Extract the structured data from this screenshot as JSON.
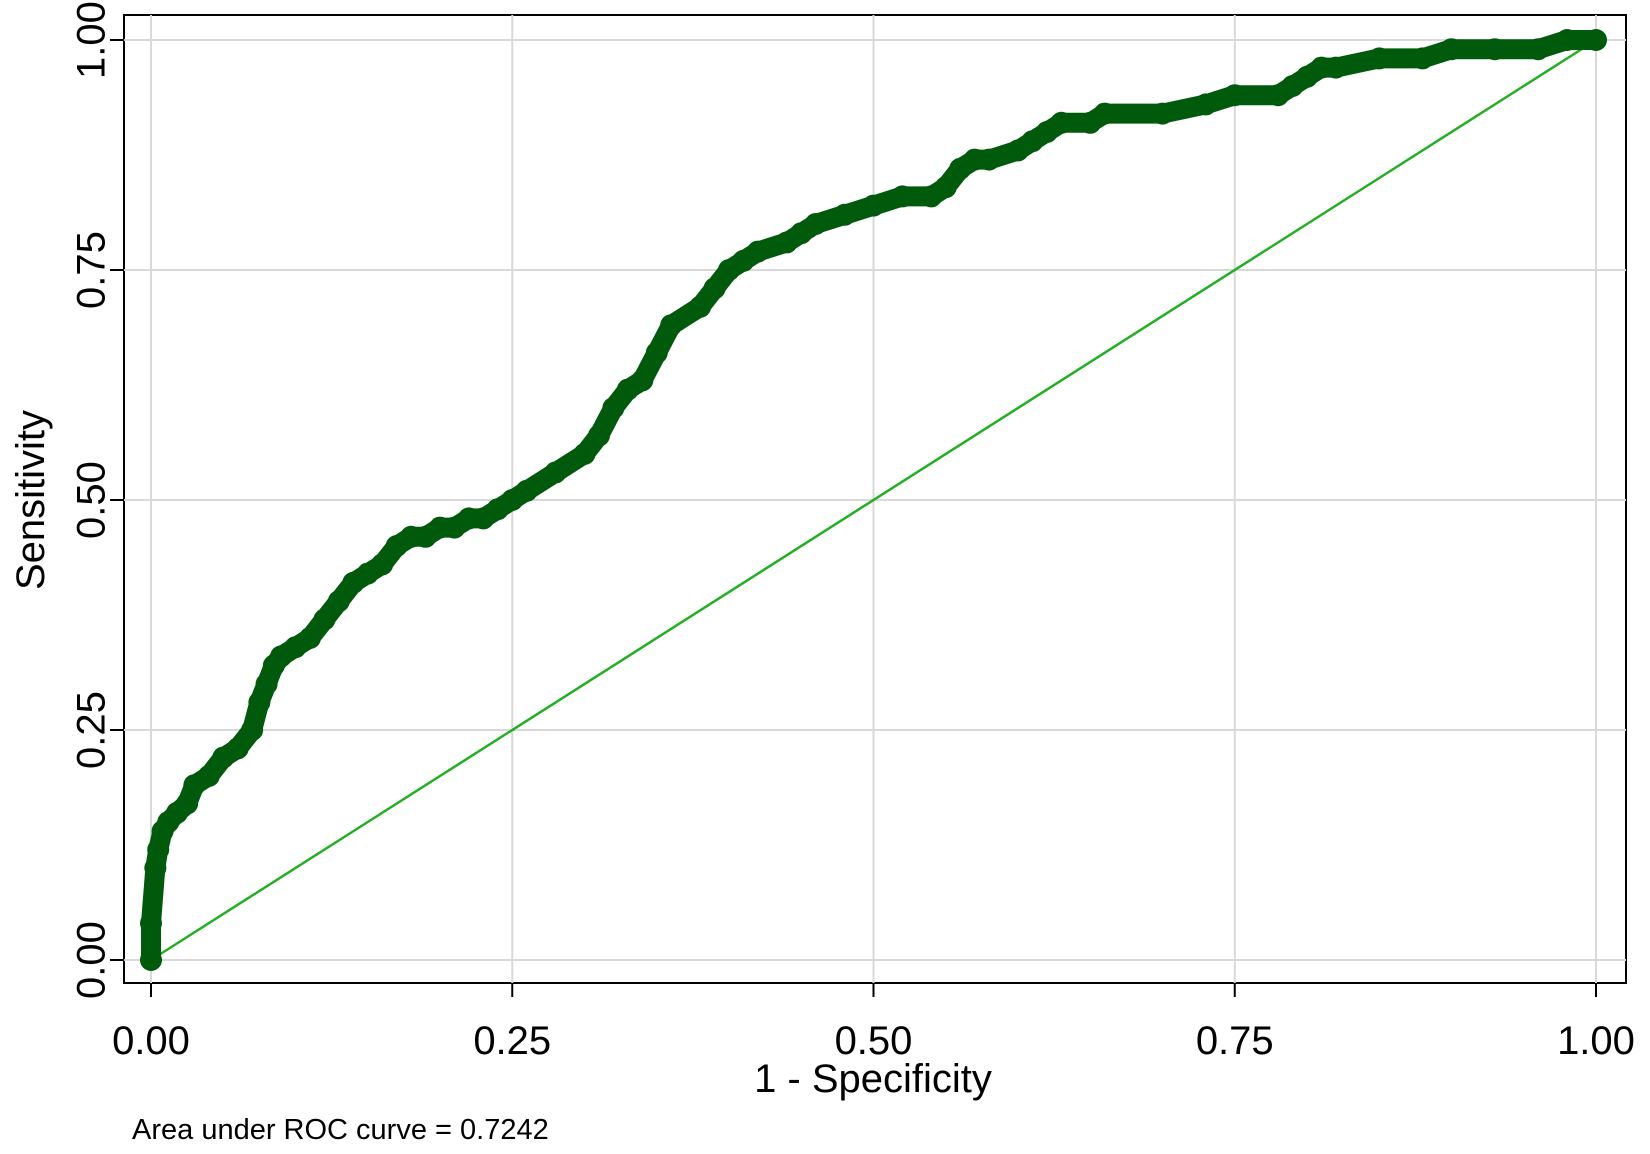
{
  "chart_data": {
    "type": "line",
    "title": "",
    "xlabel": "1 - Specificity",
    "ylabel": "Sensitivity",
    "xlim": [
      0,
      1
    ],
    "ylim": [
      0,
      1
    ],
    "grid": true,
    "x_ticks": [
      {
        "value": 0,
        "label": "0.00"
      },
      {
        "value": 0.25,
        "label": "0.25"
      },
      {
        "value": 0.5,
        "label": "0.50"
      },
      {
        "value": 0.75,
        "label": "0.75"
      },
      {
        "value": 1,
        "label": "1.00"
      }
    ],
    "y_ticks": [
      {
        "value": 0,
        "label": "0.00"
      },
      {
        "value": 0.25,
        "label": "0.25"
      },
      {
        "value": 0.5,
        "label": "0.50"
      },
      {
        "value": 0.75,
        "label": "0.75"
      },
      {
        "value": 1,
        "label": "1.00"
      }
    ],
    "annotation": "Area under ROC curve = 0.7242",
    "colors": {
      "roc": "#005a0b",
      "reference": "#22b022",
      "grid": "#d9d9d9"
    },
    "series": [
      {
        "role": "roc-curve",
        "x": [
          0,
          0,
          0.003,
          0.005,
          0.008,
          0.012,
          0.018,
          0.025,
          0.03,
          0.04,
          0.05,
          0.06,
          0.07,
          0.075,
          0.08,
          0.085,
          0.09,
          0.1,
          0.11,
          0.12,
          0.13,
          0.14,
          0.15,
          0.16,
          0.17,
          0.18,
          0.19,
          0.2,
          0.21,
          0.22,
          0.23,
          0.24,
          0.25,
          0.26,
          0.28,
          0.3,
          0.31,
          0.32,
          0.33,
          0.34,
          0.35,
          0.36,
          0.38,
          0.39,
          0.4,
          0.41,
          0.42,
          0.44,
          0.45,
          0.46,
          0.48,
          0.5,
          0.52,
          0.54,
          0.55,
          0.56,
          0.57,
          0.58,
          0.6,
          0.61,
          0.62,
          0.63,
          0.65,
          0.66,
          0.7,
          0.73,
          0.75,
          0.78,
          0.79,
          0.8,
          0.81,
          0.82,
          0.85,
          0.88,
          0.9,
          0.93,
          0.96,
          0.98,
          1.0
        ],
        "y": [
          0,
          0.04,
          0.1,
          0.12,
          0.14,
          0.15,
          0.16,
          0.17,
          0.19,
          0.2,
          0.22,
          0.23,
          0.25,
          0.28,
          0.3,
          0.32,
          0.33,
          0.34,
          0.35,
          0.37,
          0.39,
          0.41,
          0.42,
          0.43,
          0.45,
          0.46,
          0.46,
          0.47,
          0.47,
          0.48,
          0.48,
          0.49,
          0.5,
          0.51,
          0.53,
          0.55,
          0.57,
          0.6,
          0.62,
          0.63,
          0.66,
          0.69,
          0.71,
          0.73,
          0.75,
          0.76,
          0.77,
          0.78,
          0.79,
          0.8,
          0.81,
          0.82,
          0.83,
          0.83,
          0.84,
          0.86,
          0.87,
          0.87,
          0.88,
          0.89,
          0.9,
          0.91,
          0.91,
          0.92,
          0.92,
          0.93,
          0.94,
          0.94,
          0.95,
          0.96,
          0.97,
          0.97,
          0.98,
          0.98,
          0.99,
          0.99,
          0.99,
          1.0,
          1.0
        ]
      },
      {
        "role": "reference-line",
        "x": [
          0,
          1
        ],
        "y": [
          0,
          1
        ]
      }
    ]
  }
}
